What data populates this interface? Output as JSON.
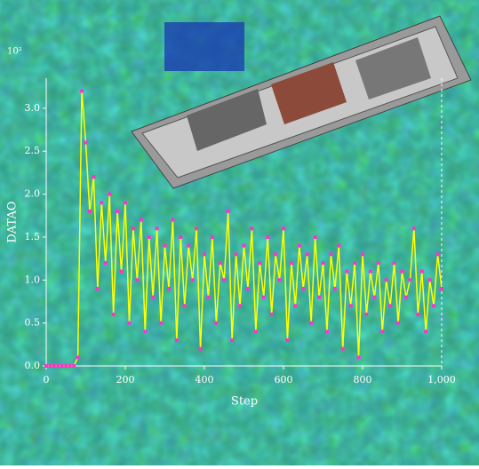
{
  "chart_data": {
    "type": "line",
    "y_multiplier": "10²",
    "xlabel": "Step",
    "ylabel": "DATAO",
    "x": [
      0,
      10,
      20,
      30,
      40,
      50,
      60,
      70,
      80,
      90,
      100,
      110,
      120,
      130,
      140,
      150,
      160,
      170,
      180,
      190,
      200,
      210,
      220,
      230,
      240,
      250,
      260,
      270,
      280,
      290,
      300,
      310,
      320,
      330,
      340,
      350,
      360,
      370,
      380,
      390,
      400,
      410,
      420,
      430,
      440,
      450,
      460,
      470,
      480,
      490,
      500,
      510,
      520,
      530,
      540,
      550,
      560,
      570,
      580,
      590,
      600,
      610,
      620,
      630,
      640,
      650,
      660,
      670,
      680,
      690,
      700,
      710,
      720,
      730,
      740,
      750,
      760,
      770,
      780,
      790,
      800,
      810,
      820,
      830,
      840,
      850,
      860,
      870,
      880,
      890,
      900,
      910,
      920,
      930,
      940,
      950,
      960,
      970,
      980,
      990,
      1000
    ],
    "series": [
      {
        "line_color": "#ffff00",
        "marker_color": "#ff33cc",
        "values": [
          0,
          0,
          0,
          0,
          0,
          0,
          0,
          0,
          0.1,
          3.2,
          2.6,
          1.8,
          2.2,
          0.9,
          1.9,
          1.2,
          2.0,
          0.6,
          1.8,
          1.1,
          1.9,
          0.5,
          1.6,
          1.0,
          1.7,
          0.4,
          1.5,
          0.8,
          1.6,
          0.5,
          1.4,
          0.9,
          1.7,
          0.3,
          1.5,
          0.7,
          1.4,
          1.0,
          1.6,
          0.2,
          1.3,
          0.8,
          1.5,
          0.5,
          1.2,
          1.0,
          1.8,
          0.3,
          1.3,
          0.7,
          1.4,
          0.9,
          1.6,
          0.4,
          1.2,
          0.8,
          1.5,
          0.6,
          1.3,
          1.0,
          1.6,
          0.3,
          1.2,
          0.7,
          1.4,
          0.9,
          1.3,
          0.5,
          1.5,
          0.8,
          1.2,
          0.4,
          1.3,
          0.9,
          1.4,
          0.2,
          1.1,
          0.7,
          1.2,
          0.1,
          1.3,
          0.6,
          1.1,
          0.8,
          1.2,
          0.4,
          1.0,
          0.7,
          1.2,
          0.5,
          1.1,
          0.8,
          1.0,
          1.6,
          0.6,
          1.1,
          0.4,
          1.0,
          0.7,
          1.3,
          0.9
        ]
      }
    ],
    "xlim": [
      0,
      1000
    ],
    "xticks": [
      0,
      200,
      400,
      600,
      800,
      {
        "value": 1000,
        "label": "1,000"
      }
    ],
    "ylim": [
      0,
      3.35
    ],
    "yticks": [
      {
        "value": 0,
        "label": "0.0"
      },
      {
        "value": 0.5,
        "label": "0.5"
      },
      {
        "value": 1,
        "label": "1.0"
      },
      {
        "value": 1.5,
        "label": "1.5"
      },
      {
        "value": 2,
        "label": "2.0"
      },
      {
        "value": 2.5,
        "label": "2.5"
      },
      {
        "value": 3,
        "label": "3.0"
      }
    ]
  }
}
